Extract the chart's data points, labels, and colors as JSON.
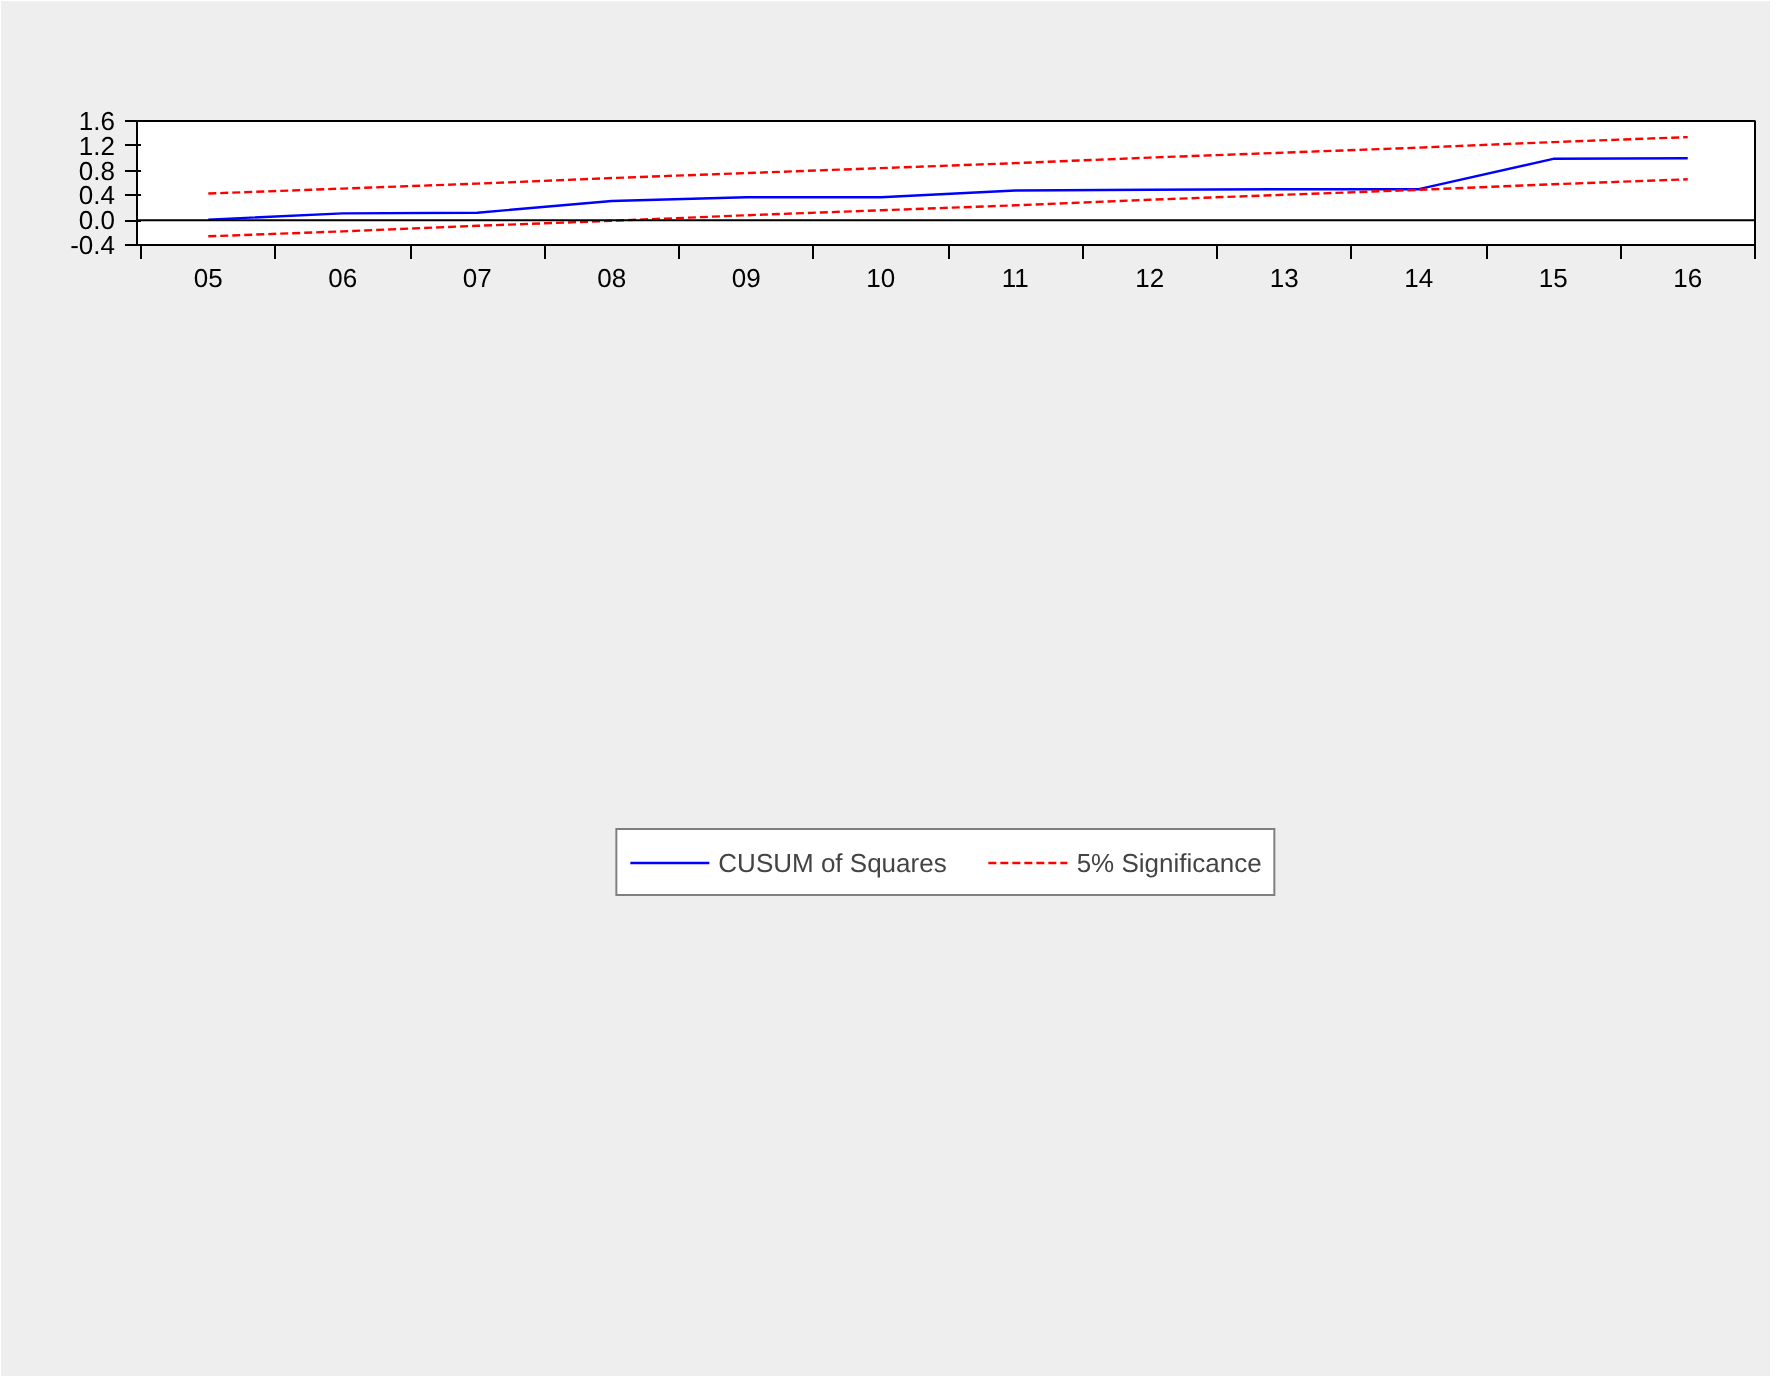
{
  "chart_data": {
    "type": "line",
    "categories": [
      "05",
      "06",
      "07",
      "08",
      "09",
      "10",
      "11",
      "12",
      "13",
      "14",
      "15",
      "16"
    ],
    "series": [
      {
        "name": "CUSUM of Squares",
        "color": "#0000ff",
        "line_style": "solid",
        "values": [
          0.01,
          0.11,
          0.12,
          0.31,
          0.37,
          0.37,
          0.48,
          0.49,
          0.5,
          0.5,
          0.99,
          1.0
        ]
      },
      {
        "name": "5% Significance",
        "color": "#ff0000",
        "line_style": "dashed",
        "values": [
          0.43,
          0.51,
          0.59,
          0.68,
          0.76,
          0.84,
          0.92,
          1.01,
          1.09,
          1.17,
          1.26,
          1.34
        ]
      },
      {
        "color": "#ff0000",
        "line_style": "dashed",
        "values": [
          -0.26,
          -0.18,
          -0.09,
          -0.01,
          0.08,
          0.16,
          0.24,
          0.33,
          0.41,
          0.49,
          0.58,
          0.66
        ]
      }
    ],
    "ylim": [
      -0.4,
      1.6
    ],
    "yticks": [
      -0.4,
      {
        "value": 0,
        "label": "0.0"
      },
      0.4,
      0.8,
      1.2,
      1.6
    ],
    "ref_lines": [
      {
        "axis": "y",
        "value": 0,
        "color": "#000000"
      }
    ],
    "grid": false,
    "legend": "bottom",
    "marker": "none"
  }
}
